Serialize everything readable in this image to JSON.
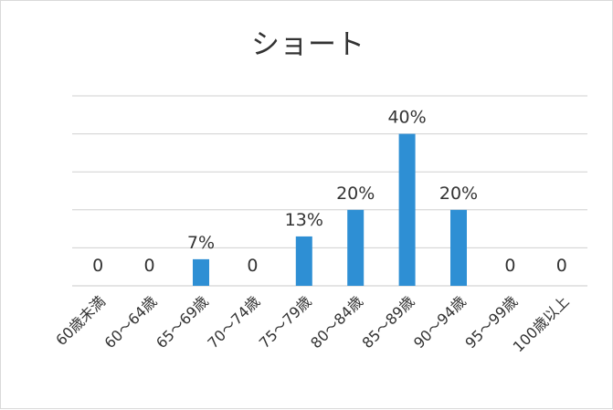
{
  "chart_data": {
    "type": "bar",
    "title": "ショート",
    "categories": [
      "60歳未満",
      "60～64歳",
      "65～69歳",
      "70～74歳",
      "75～79歳",
      "80～84歳",
      "85～89歳",
      "90～94歳",
      "95～99歳",
      "100歳以上"
    ],
    "values": [
      0,
      0,
      7,
      0,
      13,
      20,
      40,
      20,
      0,
      0
    ],
    "data_labels": [
      "0",
      "0",
      "7%",
      "0",
      "13%",
      "20%",
      "40%",
      "20%",
      "0",
      "0"
    ],
    "ylim": [
      0,
      50
    ],
    "grid": true,
    "legend": "none",
    "colors": {
      "bar": "#2e8fd4",
      "grid": "#d0d0d0",
      "text": "#333333"
    }
  }
}
